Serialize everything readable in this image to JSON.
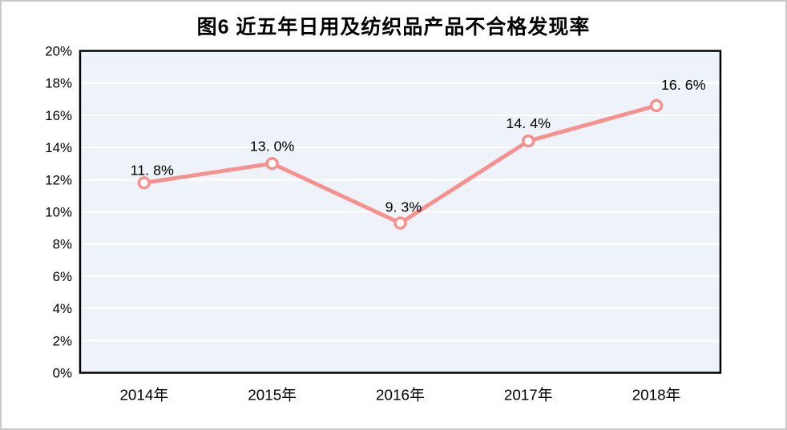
{
  "figure": {
    "title": "图6 近五年日用及纺织品产品不合格发现率"
  },
  "chart_data": {
    "type": "line",
    "title": "图6 近五年日用及纺织品产品不合格发现率",
    "categories": [
      "2014年",
      "2015年",
      "2016年",
      "2017年",
      "2018年"
    ],
    "series": [
      {
        "name": "不合格发现率",
        "values": [
          11.8,
          13.0,
          9.3,
          14.4,
          16.6
        ]
      }
    ],
    "point_labels": [
      "11. 8%",
      "13. 0%",
      "9. 3%",
      "14. 4%",
      "16. 6%"
    ],
    "xlabel": "",
    "ylabel": "",
    "ylim": [
      0,
      20
    ],
    "ytick_step": 2,
    "ytick_labels": [
      "0%",
      "2%",
      "4%",
      "6%",
      "8%",
      "10%",
      "12%",
      "14%",
      "16%",
      "18%",
      "20%"
    ],
    "grid": "horizontal",
    "legend": "none",
    "colors": {
      "line": "#f7918f",
      "marker_fill": "#ffffff",
      "marker_stroke": "#f7918f",
      "plot_bg": "#edf3f8",
      "gridline": "#ffffff",
      "plot_border": "#000000",
      "text": "#000000",
      "outer_border": "#c9c9c9",
      "page_bg": "#ffffff"
    }
  }
}
